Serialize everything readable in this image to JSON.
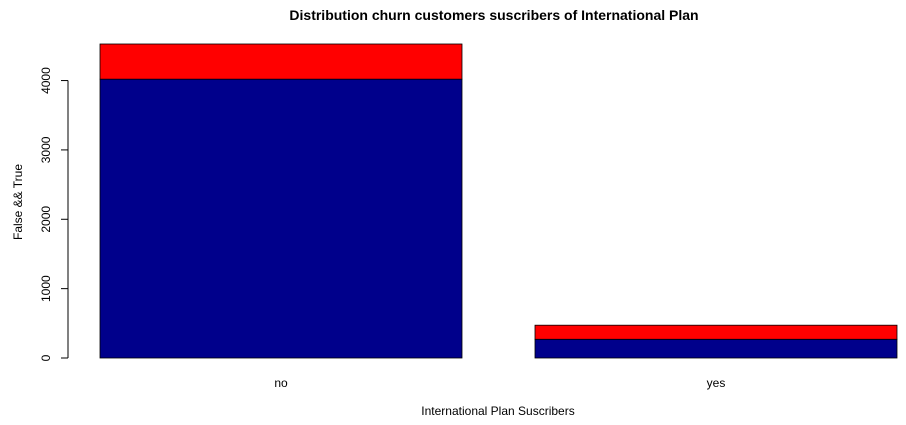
{
  "chart_data": {
    "type": "bar",
    "stacked": true,
    "title": "Distribution churn customers suscribers of International Plan",
    "xlabel": "International Plan Suscribers",
    "ylabel": "False && True",
    "categories": [
      "no",
      "yes"
    ],
    "series": [
      {
        "name": "",
        "color": "#00008B",
        "values": [
          4020,
          270
        ]
      },
      {
        "name": "",
        "color": "#FF0000",
        "values": [
          507,
          203
        ]
      }
    ],
    "ylim": [
      0,
      4527
    ],
    "yticks": [
      0,
      1000,
      2000,
      3000,
      4000
    ],
    "grid": false,
    "legend": "none"
  }
}
